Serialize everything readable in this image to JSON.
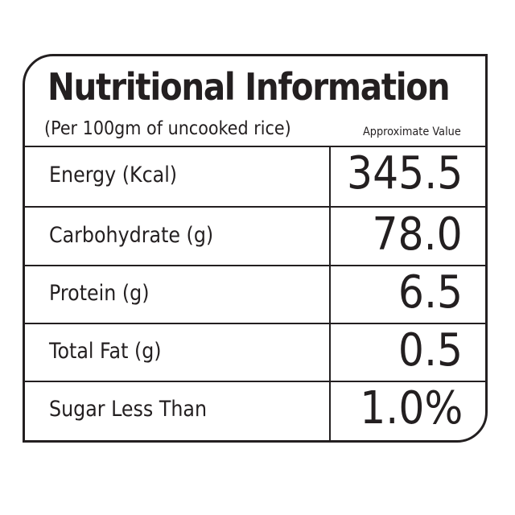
{
  "label": {
    "title": "Nutritional Information",
    "subtitle": "(Per 100gm of uncooked rice)",
    "note": "Approximate Value",
    "rows": [
      {
        "name": "Energy (Kcal)",
        "value": "345.5"
      },
      {
        "name": "Carbohydrate (g)",
        "value": "78.0"
      },
      {
        "name": "Protein (g)",
        "value": "6.5"
      },
      {
        "name": "Total Fat (g)",
        "value": "0.5"
      },
      {
        "name": "Sugar Less Than",
        "value": "1.0%"
      }
    ]
  }
}
